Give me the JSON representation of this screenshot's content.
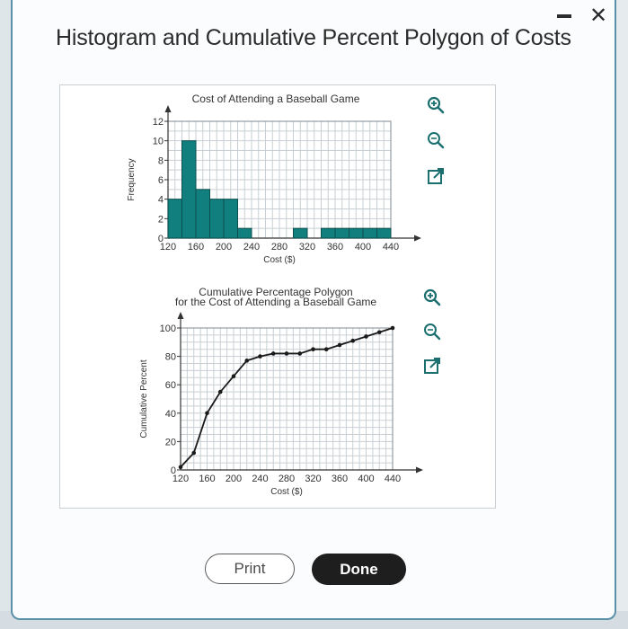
{
  "window": {
    "title": "Histogram and Cumulative Percent Polygon of Costs",
    "minimize_label": "-",
    "close_label": "✕"
  },
  "buttons": {
    "print_label": "Print",
    "done_label": "Done"
  },
  "icons": [
    "zoom-in-icon",
    "zoom-out-icon",
    "expand-icon"
  ],
  "colors": {
    "bar_fill": "#117f7e",
    "grid": "#c8cfd4",
    "line": "#1a1a1a"
  },
  "chart_data": [
    {
      "type": "bar",
      "title": "Cost of Attending a Baseball Game",
      "xlabel": "Cost ($)",
      "ylabel": "Frequency",
      "bin_width": 20,
      "bins": [
        130,
        150,
        170,
        190,
        210,
        230,
        250,
        270,
        290,
        310,
        330,
        350,
        370,
        390,
        410,
        430
      ],
      "values": [
        4,
        10,
        5,
        4,
        4,
        1,
        0,
        0,
        0,
        1,
        0,
        1,
        1,
        1,
        1,
        1
      ],
      "xlim": [
        120,
        440
      ],
      "ylim": [
        0,
        12
      ],
      "xticks": [
        "120",
        "160",
        "200",
        "240",
        "280",
        "320",
        "360",
        "400",
        "440"
      ],
      "yticks": [
        "0",
        "2",
        "4",
        "6",
        "8",
        "10",
        "12"
      ],
      "grid": true
    },
    {
      "type": "line",
      "title": "Cumulative Percentage Polygon",
      "subtitle": "for the Cost of Attending a Baseball Game",
      "xlabel": "Cost ($)",
      "ylabel": "Cumulative Percent",
      "x": [
        120,
        140,
        160,
        180,
        200,
        220,
        240,
        260,
        280,
        300,
        320,
        340,
        360,
        380,
        400,
        420,
        440
      ],
      "y": [
        2,
        12,
        40,
        55,
        66,
        77,
        80,
        82,
        82,
        82,
        85,
        85,
        88,
        91,
        94,
        97,
        100
      ],
      "xlim": [
        120,
        440
      ],
      "ylim": [
        0,
        100
      ],
      "xticks": [
        "120",
        "160",
        "200",
        "240",
        "280",
        "320",
        "360",
        "400",
        "440"
      ],
      "yticks": [
        "0",
        "20",
        "40",
        "60",
        "80",
        "100"
      ],
      "grid": true
    }
  ]
}
